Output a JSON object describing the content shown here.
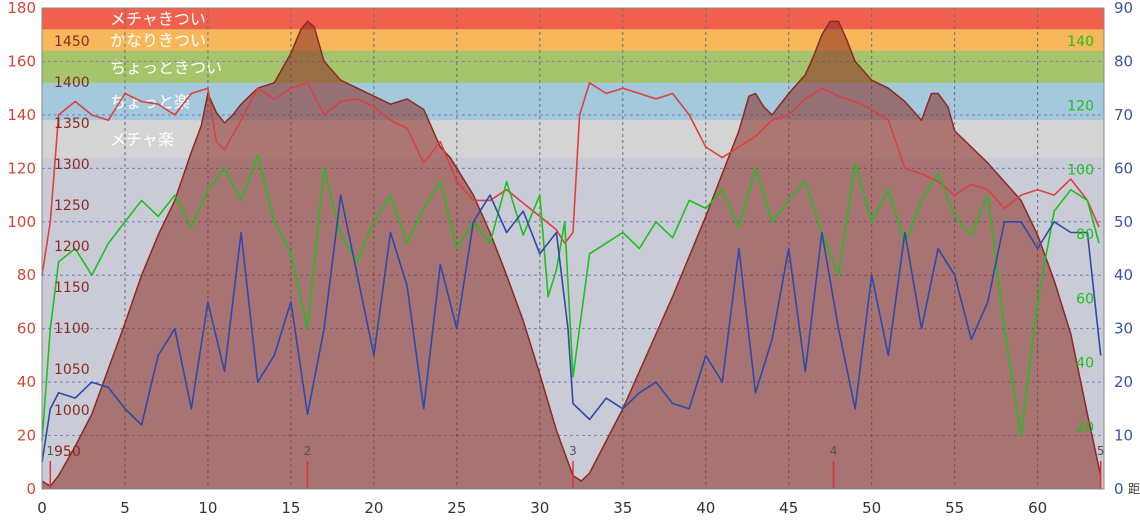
{
  "chart_data": {
    "type": "line",
    "x_axis": {
      "min": 0,
      "max": 64,
      "ticks": [
        "0",
        "5",
        "10",
        "15",
        "20",
        "25",
        "30",
        "35",
        "40",
        "45",
        "50",
        "55",
        "60"
      ],
      "label": "距離"
    },
    "y_left": {
      "min": 0,
      "max": 180,
      "ticks": [
        "0",
        "20",
        "40",
        "60",
        "80",
        "100",
        "120",
        "140",
        "160",
        "180"
      ]
    },
    "y_right": {
      "min": 0,
      "max": 90,
      "ticks": [
        "0",
        "10",
        "20",
        "30",
        "40",
        "50",
        "60",
        "70",
        "80",
        "90"
      ]
    },
    "altitude_axis": {
      "ticks": [
        "950",
        "1000",
        "1050",
        "1100",
        "1150",
        "1200",
        "1250",
        "1300",
        "1350",
        "1400",
        "1450"
      ]
    },
    "cadence_axis": {
      "ticks": [
        "20",
        "40",
        "60",
        "80",
        "100",
        "120",
        "140"
      ]
    },
    "zones": [
      {
        "label": "メチャきつい",
        "from": 172,
        "to": 180,
        "color": "#f0604c"
      },
      {
        "label": "かなりきつい",
        "from": 164,
        "to": 172,
        "color": "#f6b85a"
      },
      {
        "label": "ちょっときつい",
        "from": 152,
        "to": 164,
        "color": "#a6c46a"
      },
      {
        "label": "ちょっと楽",
        "from": 138,
        "to": 152,
        "color": "#a4c8dc"
      },
      {
        "label": "メチャ楽",
        "from": 124,
        "to": 138,
        "color": "#d4d4d4"
      }
    ],
    "lap_markers": [
      {
        "label": "1",
        "x": 0.5
      },
      {
        "label": "2",
        "x": 16
      },
      {
        "label": "3",
        "x": 32
      },
      {
        "label": "4",
        "x": 47.7
      },
      {
        "label": "5",
        "x": 63.8
      }
    ],
    "series": [
      {
        "name": "altitude",
        "color": "#8b2a22",
        "points": [
          [
            0,
            3
          ],
          [
            0.5,
            1
          ],
          [
            1,
            5
          ],
          [
            2,
            16
          ],
          [
            3,
            28
          ],
          [
            4,
            45
          ],
          [
            5,
            62
          ],
          [
            6,
            80
          ],
          [
            7,
            95
          ],
          [
            8,
            108
          ],
          [
            9,
            126
          ],
          [
            9.6,
            136
          ],
          [
            10,
            148
          ],
          [
            10.5,
            141
          ],
          [
            11,
            137
          ],
          [
            11.5,
            140
          ],
          [
            12,
            144
          ],
          [
            13,
            150
          ],
          [
            14,
            152
          ],
          [
            15,
            163
          ],
          [
            15.6,
            172
          ],
          [
            16,
            175
          ],
          [
            16.4,
            173
          ],
          [
            17,
            160
          ],
          [
            18,
            153
          ],
          [
            19,
            150
          ],
          [
            20,
            147
          ],
          [
            21,
            144
          ],
          [
            22,
            146
          ],
          [
            23,
            142
          ],
          [
            24,
            128
          ],
          [
            24.6,
            124
          ],
          [
            25,
            120
          ],
          [
            26,
            110
          ],
          [
            27,
            96
          ],
          [
            28,
            80
          ],
          [
            29,
            63
          ],
          [
            30,
            43
          ],
          [
            31,
            22
          ],
          [
            32,
            5
          ],
          [
            32.5,
            3
          ],
          [
            33,
            6
          ],
          [
            34,
            18
          ],
          [
            35,
            30
          ],
          [
            36,
            44
          ],
          [
            37,
            58
          ],
          [
            38,
            72
          ],
          [
            39,
            87
          ],
          [
            40,
            102
          ],
          [
            41,
            118
          ],
          [
            42,
            134
          ],
          [
            42.6,
            147
          ],
          [
            43,
            148
          ],
          [
            43.5,
            143
          ],
          [
            44,
            140
          ],
          [
            45,
            148
          ],
          [
            46,
            155
          ],
          [
            46.5,
            162
          ],
          [
            47,
            170
          ],
          [
            47.5,
            175
          ],
          [
            48,
            175
          ],
          [
            48.5,
            168
          ],
          [
            49,
            160
          ],
          [
            50,
            153
          ],
          [
            51,
            150
          ],
          [
            52,
            145
          ],
          [
            53,
            138
          ],
          [
            53.6,
            148
          ],
          [
            54,
            148
          ],
          [
            54.6,
            143
          ],
          [
            55,
            134
          ],
          [
            56,
            128
          ],
          [
            57,
            122
          ],
          [
            58,
            115
          ],
          [
            59,
            108
          ],
          [
            60,
            95
          ],
          [
            61,
            78
          ],
          [
            62,
            58
          ],
          [
            63,
            28
          ],
          [
            63.8,
            5
          ]
        ]
      },
      {
        "name": "heart_rate",
        "color": "#dd4040",
        "points": [
          [
            0,
            80
          ],
          [
            0.5,
            100
          ],
          [
            1,
            140
          ],
          [
            2,
            145
          ],
          [
            3,
            140
          ],
          [
            4,
            138
          ],
          [
            5,
            148
          ],
          [
            6,
            145
          ],
          [
            7,
            144
          ],
          [
            8,
            140
          ],
          [
            9,
            148
          ],
          [
            10,
            150
          ],
          [
            10.5,
            130
          ],
          [
            11,
            127
          ],
          [
            12,
            138
          ],
          [
            13,
            150
          ],
          [
            14,
            146
          ],
          [
            15,
            150
          ],
          [
            16,
            152
          ],
          [
            17,
            140
          ],
          [
            18,
            145
          ],
          [
            19,
            146
          ],
          [
            20,
            143
          ],
          [
            21,
            138
          ],
          [
            22,
            135
          ],
          [
            23,
            122
          ],
          [
            24,
            130
          ],
          [
            25,
            115
          ],
          [
            26,
            108
          ],
          [
            27,
            108
          ],
          [
            28,
            112
          ],
          [
            29,
            107
          ],
          [
            30,
            102
          ],
          [
            31,
            97
          ],
          [
            31.5,
            92
          ],
          [
            32,
            96
          ],
          [
            32.4,
            140
          ],
          [
            33,
            152
          ],
          [
            34,
            148
          ],
          [
            35,
            150
          ],
          [
            36,
            148
          ],
          [
            37,
            146
          ],
          [
            38,
            148
          ],
          [
            39,
            140
          ],
          [
            40,
            128
          ],
          [
            41,
            124
          ],
          [
            42,
            128
          ],
          [
            43,
            132
          ],
          [
            44,
            138
          ],
          [
            45,
            140
          ],
          [
            46,
            146
          ],
          [
            47,
            150
          ],
          [
            48,
            147
          ],
          [
            49,
            145
          ],
          [
            50,
            142
          ],
          [
            51,
            138
          ],
          [
            52,
            120
          ],
          [
            53,
            118
          ],
          [
            54,
            115
          ],
          [
            55,
            110
          ],
          [
            56,
            114
          ],
          [
            57,
            112
          ],
          [
            58,
            105
          ],
          [
            59,
            110
          ],
          [
            60,
            112
          ],
          [
            61,
            110
          ],
          [
            62,
            116
          ],
          [
            63,
            108
          ],
          [
            63.7,
            98
          ]
        ]
      },
      {
        "name": "cadence",
        "color": "#1fbf1f",
        "points": [
          [
            0,
            18
          ],
          [
            0.5,
            60
          ],
          [
            1,
            85
          ],
          [
            2,
            90
          ],
          [
            3,
            80
          ],
          [
            4,
            92
          ],
          [
            5,
            100
          ],
          [
            6,
            108
          ],
          [
            7,
            102
          ],
          [
            8,
            110
          ],
          [
            9,
            98
          ],
          [
            10,
            112
          ],
          [
            11,
            120
          ],
          [
            12,
            108
          ],
          [
            13,
            125
          ],
          [
            14,
            100
          ],
          [
            15,
            88
          ],
          [
            16,
            60
          ],
          [
            17,
            120
          ],
          [
            18,
            95
          ],
          [
            19,
            85
          ],
          [
            20,
            100
          ],
          [
            21,
            110
          ],
          [
            22,
            92
          ],
          [
            23,
            105
          ],
          [
            24,
            115
          ],
          [
            25,
            90
          ],
          [
            26,
            100
          ],
          [
            27,
            92
          ],
          [
            28,
            115
          ],
          [
            29,
            95
          ],
          [
            30,
            110
          ],
          [
            30.5,
            72
          ],
          [
            31,
            82
          ],
          [
            31.5,
            100
          ],
          [
            32,
            42
          ],
          [
            33,
            88
          ],
          [
            34,
            92
          ],
          [
            35,
            96
          ],
          [
            36,
            90
          ],
          [
            37,
            100
          ],
          [
            38,
            94
          ],
          [
            39,
            108
          ],
          [
            40,
            105
          ],
          [
            41,
            112
          ],
          [
            42,
            98
          ],
          [
            43,
            120
          ],
          [
            44,
            100
          ],
          [
            45,
            108
          ],
          [
            46,
            115
          ],
          [
            47,
            96
          ],
          [
            48,
            80
          ],
          [
            49,
            122
          ],
          [
            50,
            100
          ],
          [
            51,
            112
          ],
          [
            52,
            92
          ],
          [
            53,
            108
          ],
          [
            54,
            118
          ],
          [
            55,
            102
          ],
          [
            56,
            95
          ],
          [
            57,
            110
          ],
          [
            58,
            60
          ],
          [
            59,
            20
          ],
          [
            60,
            70
          ],
          [
            61,
            104
          ],
          [
            62,
            112
          ],
          [
            63,
            108
          ],
          [
            63.7,
            92
          ]
        ]
      },
      {
        "name": "speed",
        "color": "#2e4aa8",
        "points": [
          [
            0,
            5
          ],
          [
            0.5,
            15
          ],
          [
            1,
            18
          ],
          [
            2,
            17
          ],
          [
            3,
            20
          ],
          [
            4,
            19
          ],
          [
            5,
            15
          ],
          [
            6,
            12
          ],
          [
            7,
            25
          ],
          [
            8,
            30
          ],
          [
            9,
            15
          ],
          [
            10,
            35
          ],
          [
            11,
            22
          ],
          [
            12,
            48
          ],
          [
            13,
            20
          ],
          [
            14,
            25
          ],
          [
            15,
            35
          ],
          [
            16,
            14
          ],
          [
            17,
            30
          ],
          [
            18,
            55
          ],
          [
            19,
            40
          ],
          [
            20,
            25
          ],
          [
            21,
            48
          ],
          [
            22,
            38
          ],
          [
            23,
            15
          ],
          [
            24,
            42
          ],
          [
            25,
            30
          ],
          [
            26,
            50
          ],
          [
            27,
            55
          ],
          [
            28,
            48
          ],
          [
            29,
            52
          ],
          [
            30,
            44
          ],
          [
            31,
            48
          ],
          [
            31.7,
            30
          ],
          [
            32,
            16
          ],
          [
            33,
            13
          ],
          [
            34,
            17
          ],
          [
            35,
            15
          ],
          [
            36,
            18
          ],
          [
            37,
            20
          ],
          [
            38,
            16
          ],
          [
            39,
            15
          ],
          [
            40,
            25
          ],
          [
            41,
            20
          ],
          [
            42,
            45
          ],
          [
            43,
            18
          ],
          [
            44,
            28
          ],
          [
            45,
            45
          ],
          [
            46,
            22
          ],
          [
            47,
            48
          ],
          [
            48,
            30
          ],
          [
            49,
            15
          ],
          [
            50,
            40
          ],
          [
            51,
            25
          ],
          [
            52,
            48
          ],
          [
            53,
            30
          ],
          [
            54,
            45
          ],
          [
            55,
            40
          ],
          [
            56,
            28
          ],
          [
            57,
            35
          ],
          [
            58,
            50
          ],
          [
            59,
            50
          ],
          [
            60,
            45
          ],
          [
            61,
            50
          ],
          [
            62,
            48
          ],
          [
            63,
            48
          ],
          [
            63.8,
            25
          ]
        ]
      }
    ],
    "grid": true
  }
}
